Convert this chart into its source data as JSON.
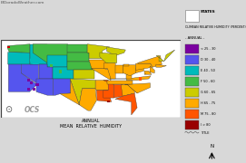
{
  "title_line1": "ANNUAL",
  "title_line2": "MEAN  RELATIVE  HUMIDITY",
  "watermark": "ElDoradoWeather.com",
  "legend_title": "CLIMEAN RELATIVE HUMIDITY (PERCENT)",
  "legend_subtitle": "- ANNUAL -",
  "legend_items": [
    {
      "label": "< 25 - 30",
      "color": "#7b00a0"
    },
    {
      "label": "D 30 - 40",
      "color": "#5555ee"
    },
    {
      "label": "E 40 - 50",
      "color": "#00bbbb"
    },
    {
      "label": "F 50 - 60",
      "color": "#44bb44"
    },
    {
      "label": "G 60 - 65",
      "color": "#cccc00"
    },
    {
      "label": "H 65 - 75",
      "color": "#ffaa00"
    },
    {
      "label": "M 75 - 80",
      "color": "#ff5500"
    },
    {
      "label": "I > 80",
      "color": "#990000"
    }
  ],
  "states_label": "STATES",
  "bg_color": "#d8d8d8",
  "map_frame_color": "#555555",
  "noaa_color": "#888888"
}
